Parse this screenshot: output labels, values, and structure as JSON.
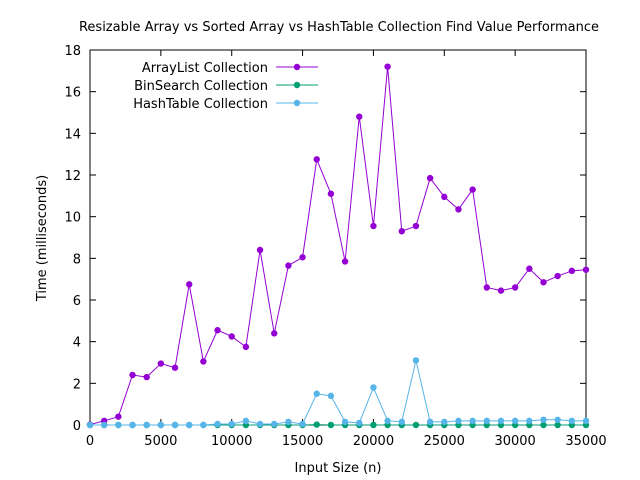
{
  "chart_data": {
    "type": "line",
    "title": "Resizable Array vs Sorted Array vs HashTable Collection Find Value Performance",
    "xlabel": "Input Size (n)",
    "ylabel": "Time (milliseconds)",
    "xlim": [
      0,
      35000
    ],
    "ylim": [
      0,
      18
    ],
    "xticks": [
      0,
      5000,
      10000,
      15000,
      20000,
      25000,
      30000,
      35000
    ],
    "yticks": [
      0,
      2,
      4,
      6,
      8,
      10,
      12,
      14,
      16,
      18
    ],
    "grid": false,
    "legend_position": "top-left",
    "x": [
      0,
      1000,
      2000,
      3000,
      4000,
      5000,
      6000,
      7000,
      8000,
      9000,
      10000,
      11000,
      12000,
      13000,
      14000,
      15000,
      16000,
      17000,
      18000,
      19000,
      20000,
      21000,
      22000,
      23000,
      24000,
      25000,
      26000,
      27000,
      28000,
      29000,
      30000,
      31000,
      32000,
      33000,
      34000,
      35000
    ],
    "series": [
      {
        "name": "ArrayList Collection",
        "color": "#9400d3",
        "values": [
          0.02,
          0.2,
          0.4,
          2.4,
          2.3,
          2.95,
          2.75,
          6.75,
          3.05,
          4.55,
          4.25,
          3.75,
          8.4,
          4.4,
          7.65,
          8.05,
          12.75,
          11.1,
          7.85,
          14.8,
          9.55,
          17.2,
          9.3,
          9.55,
          11.85,
          10.95,
          10.35,
          11.3,
          6.6,
          6.45,
          6.6,
          7.5,
          6.85,
          7.15,
          7.4,
          7.45
        ]
      },
      {
        "name": "BinSearch Collection",
        "color": "#009e73",
        "values": [
          0.0,
          0.0,
          0.0,
          0.0,
          0.0,
          0.0,
          0.0,
          0.0,
          0.0,
          0.0,
          0.0,
          0.0,
          0.0,
          0.0,
          0.0,
          0.0,
          0.02,
          0.0,
          0.0,
          0.0,
          0.0,
          0.0,
          0.0,
          0.0,
          0.0,
          0.0,
          0.0,
          0.0,
          0.0,
          0.0,
          0.0,
          0.0,
          0.0,
          0.0,
          0.0,
          0.0
        ]
      },
      {
        "name": "HashTable Collection",
        "color": "#56b4e9",
        "values": [
          0.0,
          0.0,
          0.0,
          0.0,
          0.0,
          0.0,
          0.0,
          0.0,
          0.0,
          0.05,
          0.05,
          0.2,
          0.05,
          0.05,
          0.15,
          0.05,
          1.5,
          1.4,
          0.15,
          0.1,
          1.8,
          0.2,
          0.15,
          3.1,
          0.15,
          0.15,
          0.2,
          0.2,
          0.2,
          0.2,
          0.2,
          0.2,
          0.25,
          0.25,
          0.2,
          0.2
        ]
      }
    ]
  }
}
